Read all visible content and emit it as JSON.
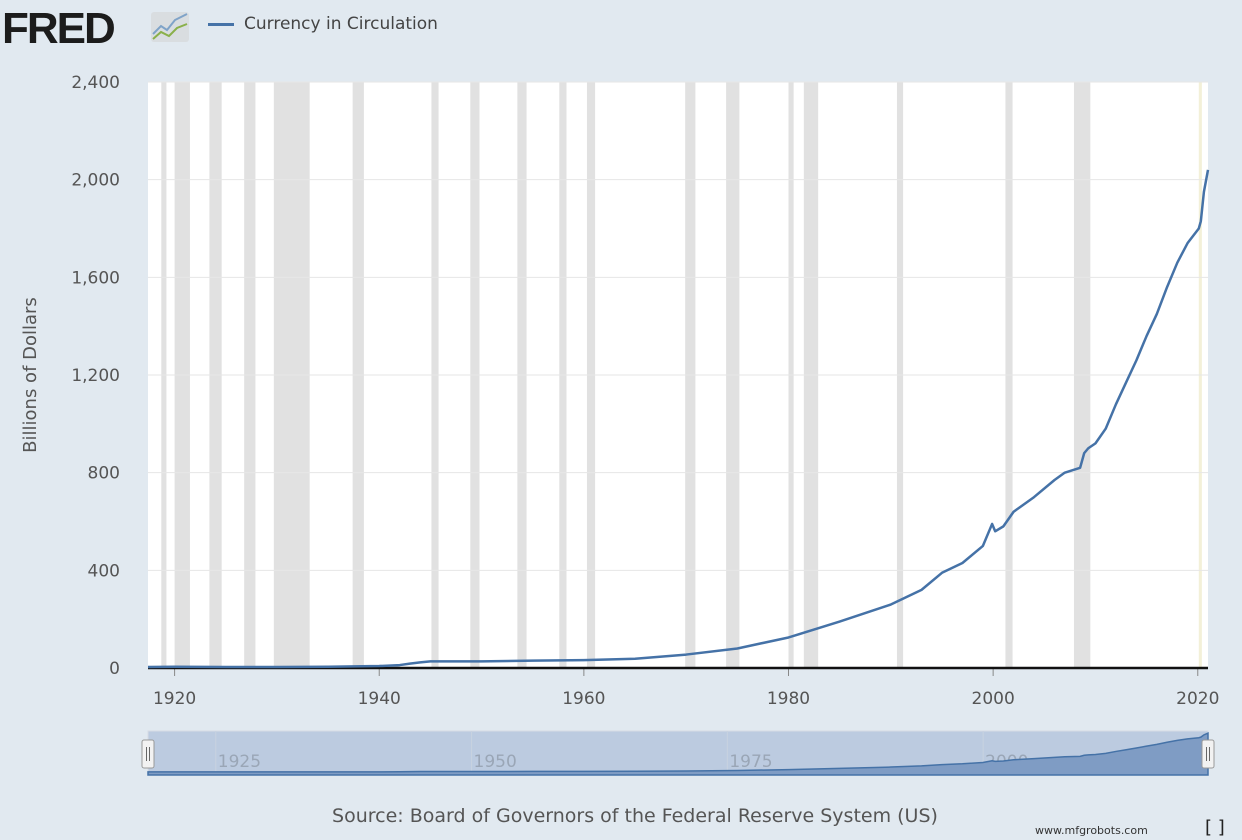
{
  "header": {
    "logo_text": "FRED",
    "logo_icon": "line-chart-icon"
  },
  "chart_data": {
    "type": "line",
    "title": "",
    "xlabel": "",
    "ylabel": "Billions of Dollars",
    "xlim": [
      1917.4,
      2021.0
    ],
    "ylim": [
      0,
      2400
    ],
    "grid": true,
    "legend_placement": "top-left",
    "xticks": [
      "1920",
      "1940",
      "1960",
      "1980",
      "2000",
      "2020"
    ],
    "yticks": [
      "0",
      "400",
      "800",
      "1,200",
      "1,600",
      "2,000",
      "2,400"
    ],
    "series": [
      {
        "name": "Currency in Circulation",
        "color": "#4572a7",
        "x": [
          1917.4,
          1920,
          1925,
          1930,
          1935,
          1940,
          1942,
          1943,
          1944,
          1945,
          1950,
          1955,
          1960,
          1965,
          1970,
          1975,
          1980,
          1985,
          1990,
          1993,
          1995,
          1997,
          1999,
          1999.9,
          2000.2,
          2001,
          2002,
          2004,
          2006,
          2007,
          2008.5,
          2008.9,
          2009.3,
          2010,
          2011,
          2012,
          2013,
          2014,
          2015,
          2016,
          2017,
          2018,
          2019,
          2020.1,
          2020.3,
          2020.6,
          2021.0
        ],
        "y": [
          4,
          5,
          4,
          4,
          5,
          8,
          12,
          18,
          23,
          27,
          27,
          30,
          32,
          38,
          55,
          80,
          125,
          190,
          260,
          320,
          390,
          430,
          500,
          590,
          560,
          580,
          640,
          700,
          770,
          800,
          820,
          880,
          900,
          920,
          980,
          1080,
          1170,
          1260,
          1360,
          1450,
          1560,
          1660,
          1740,
          1800,
          1830,
          1950,
          2040
        ]
      }
    ],
    "recessions": [
      [
        1918.7,
        1919.2
      ],
      [
        1920.0,
        1921.5
      ],
      [
        1923.4,
        1924.6
      ],
      [
        1926.8,
        1927.9
      ],
      [
        1929.7,
        1933.2
      ],
      [
        1937.4,
        1938.5
      ],
      [
        1945.1,
        1945.8
      ],
      [
        1948.9,
        1949.8
      ],
      [
        1953.5,
        1954.4
      ],
      [
        1957.6,
        1958.3
      ],
      [
        1960.3,
        1961.1
      ],
      [
        1969.9,
        1970.9
      ],
      [
        1973.9,
        1975.2
      ],
      [
        1980.0,
        1980.5
      ],
      [
        1981.5,
        1982.9
      ],
      [
        1990.6,
        1991.2
      ],
      [
        2001.2,
        2001.9
      ],
      [
        2007.9,
        2009.5
      ],
      [
        2020.1,
        2020.4
      ]
    ],
    "recession_color": "#e1e1e1",
    "navigator": {
      "ticks": [
        "1925",
        "1950",
        "1975",
        "2000"
      ]
    }
  },
  "footer": {
    "source": "Source: Board of Governors of the Federal Reserve System (US)",
    "fullscreen_icon": "fullscreen-icon",
    "watermark": "www.mfgrobots.com"
  }
}
